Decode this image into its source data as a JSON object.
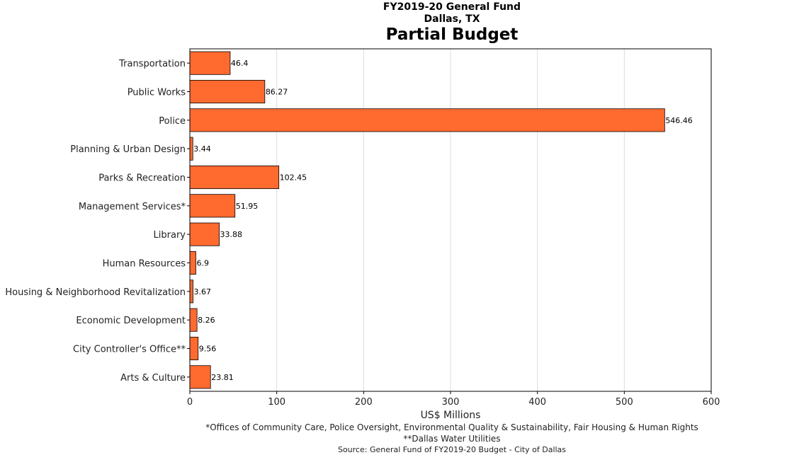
{
  "chart_data": {
    "type": "bar",
    "orientation": "horizontal",
    "title_line1": "FY2019-20 General Fund",
    "title_line2": "Dallas, TX",
    "title": "Partial Budget",
    "xlabel": "US$ Millions",
    "ylabel": "",
    "xlim": [
      0,
      600
    ],
    "xticks": [
      0,
      100,
      200,
      300,
      400,
      500,
      600
    ],
    "grid": "vertical",
    "bar_color": "#ff6a2f",
    "categories": [
      "Transportation",
      "Public Works",
      "Police",
      "Planning & Urban Design",
      "Parks & Recreation",
      "Management Services*",
      "Library",
      "Human Resources",
      "Housing & Neighborhood Revitalization",
      "Economic Development",
      "City Controller's Office**",
      "Arts & Culture"
    ],
    "values": [
      46.4,
      86.27,
      546.46,
      3.44,
      102.45,
      51.95,
      33.88,
      6.9,
      3.67,
      8.26,
      9.56,
      23.81
    ],
    "value_labels": [
      "46.4",
      "86.27",
      "546.46",
      "3.44",
      "102.45",
      "51.95",
      "33.88",
      "6.9",
      "3.67",
      "8.26",
      "9.56",
      "23.81"
    ],
    "footnotes": [
      "*Offices of Community Care, Police Oversight, Environmental Quality & Sustainability, Fair Housing & Human Rights",
      "**Dallas Water Utilities",
      "Source: General Fund of FY2019-20 Budget - City of Dallas"
    ]
  }
}
